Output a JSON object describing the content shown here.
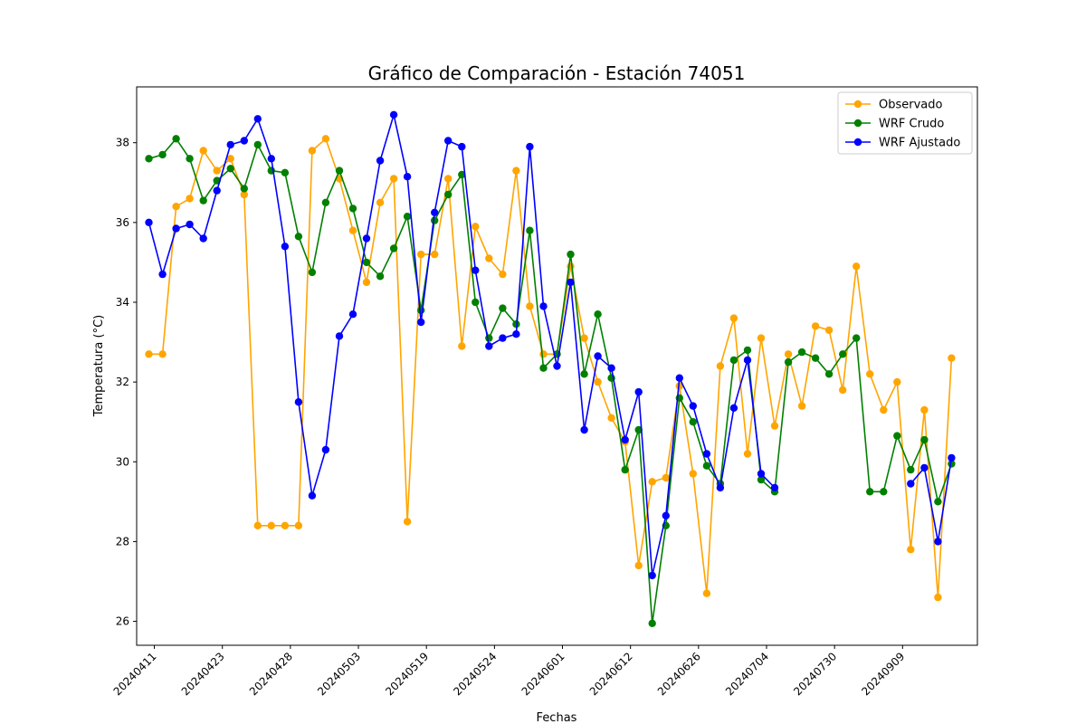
{
  "chart_data": {
    "type": "line",
    "title": "Gráfico de Comparación - Estación 74051",
    "xlabel": "Fechas",
    "ylabel": "Temperatura (°C)",
    "ylim": [
      25.4,
      39.4
    ],
    "yticks": [
      26,
      28,
      30,
      32,
      34,
      36,
      38
    ],
    "x_index_range": [
      -0.9,
      60.9
    ],
    "x_ticks": [
      {
        "label": "20240411",
        "index": 0.4
      },
      {
        "label": "20240423",
        "index": 5.4
      },
      {
        "label": "20240428",
        "index": 10.4
      },
      {
        "label": "20240503",
        "index": 15.4
      },
      {
        "label": "20240519",
        "index": 20.4
      },
      {
        "label": "20240524",
        "index": 25.4
      },
      {
        "label": "20240601",
        "index": 30.4
      },
      {
        "label": "20240612",
        "index": 35.4
      },
      {
        "label": "20240626",
        "index": 40.4
      },
      {
        "label": "20240704",
        "index": 45.4
      },
      {
        "label": "20240730",
        "index": 50.4
      },
      {
        "label": "20240909",
        "index": 55.4
      }
    ],
    "legend_position": "upper-right",
    "grid": false,
    "series": [
      {
        "name": "Observado",
        "color": "#ffa500",
        "values": [
          32.7,
          32.7,
          36.4,
          36.6,
          37.8,
          37.3,
          37.6,
          36.7,
          28.4,
          28.4,
          28.4,
          28.4,
          37.8,
          38.1,
          37.1,
          35.8,
          34.5,
          36.5,
          37.1,
          28.5,
          35.2,
          35.2,
          37.1,
          32.9,
          35.9,
          35.1,
          34.7,
          37.3,
          33.9,
          32.7,
          32.7,
          34.9,
          33.1,
          32.0,
          31.1,
          30.5,
          27.4,
          29.5,
          29.6,
          31.9,
          29.7,
          26.7,
          32.4,
          33.6,
          30.2,
          33.1,
          30.9,
          32.7,
          31.4,
          33.4,
          33.3,
          31.8,
          34.9,
          32.2,
          31.3,
          32.0,
          27.8,
          31.3,
          26.6,
          32.6
        ]
      },
      {
        "name": "WRF Crudo",
        "color": "#008000",
        "values": [
          37.6,
          37.7,
          38.1,
          37.6,
          36.55,
          37.05,
          37.35,
          36.85,
          37.95,
          37.3,
          37.25,
          35.65,
          34.75,
          36.5,
          37.3,
          36.35,
          35.0,
          34.65,
          35.35,
          36.15,
          33.8,
          36.05,
          36.7,
          37.2,
          34.0,
          33.1,
          33.85,
          33.45,
          35.8,
          32.35,
          32.7,
          35.2,
          32.2,
          33.7,
          32.1,
          29.8,
          30.8,
          25.95,
          28.4,
          31.6,
          31.0,
          29.9,
          29.45,
          32.55,
          32.8,
          29.55,
          29.25,
          32.5,
          32.75,
          32.6,
          32.2,
          32.7,
          33.1,
          29.25,
          29.25,
          30.65,
          29.8,
          30.55,
          29.0,
          29.95
        ]
      },
      {
        "name": "WRF Ajustado",
        "color": "#0000ff",
        "values": [
          36.0,
          34.7,
          35.85,
          35.95,
          35.6,
          36.8,
          37.95,
          38.05,
          38.6,
          37.6,
          35.4,
          31.5,
          29.15,
          30.3,
          33.15,
          33.7,
          35.6,
          37.55,
          38.7,
          37.15,
          33.5,
          36.25,
          38.05,
          37.9,
          34.8,
          32.9,
          33.1,
          33.2,
          37.9,
          33.9,
          32.4,
          34.5,
          30.8,
          32.65,
          32.35,
          30.55,
          31.75,
          27.15,
          28.65,
          32.1,
          31.4,
          30.2,
          29.35,
          31.35,
          32.55,
          29.7,
          29.35,
          null,
          null,
          null,
          null,
          null,
          null,
          null,
          null,
          null,
          29.45,
          29.85,
          28.0,
          30.1
        ]
      }
    ]
  }
}
